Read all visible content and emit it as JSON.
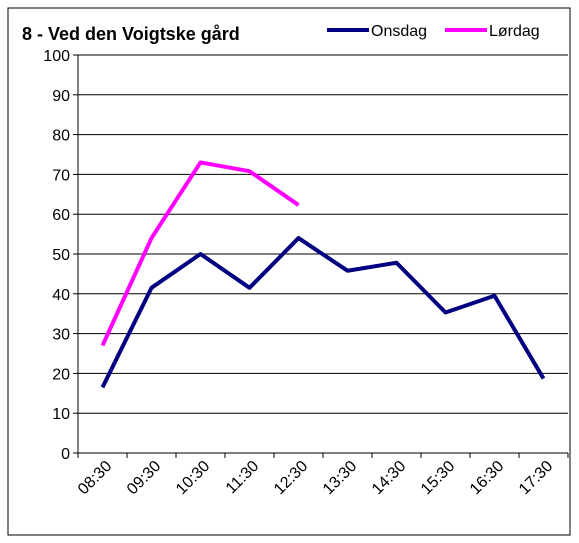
{
  "chart_data": {
    "type": "line",
    "title": "8 - Ved den Voigtske gård",
    "categories": [
      "08:30",
      "09:30",
      "10:30",
      "11:30",
      "12:30",
      "13:30",
      "14:30",
      "15:30",
      "16:30",
      "17:30"
    ],
    "series": [
      {
        "name": "Onsdag",
        "color": "#000080",
        "values": [
          16.5,
          41.5,
          50,
          41.5,
          54,
          45.8,
          47.8,
          35.3,
          39.5,
          18.7
        ]
      },
      {
        "name": "Lørdag",
        "color": "#ff00ff",
        "values": [
          27,
          54,
          73,
          70.8,
          62.3,
          null,
          null,
          null,
          null,
          null
        ]
      }
    ],
    "ylim": [
      0,
      100
    ],
    "yticks": [
      0,
      10,
      20,
      30,
      40,
      50,
      60,
      70,
      80,
      90,
      100
    ],
    "grid": true,
    "legend": "top-right"
  }
}
